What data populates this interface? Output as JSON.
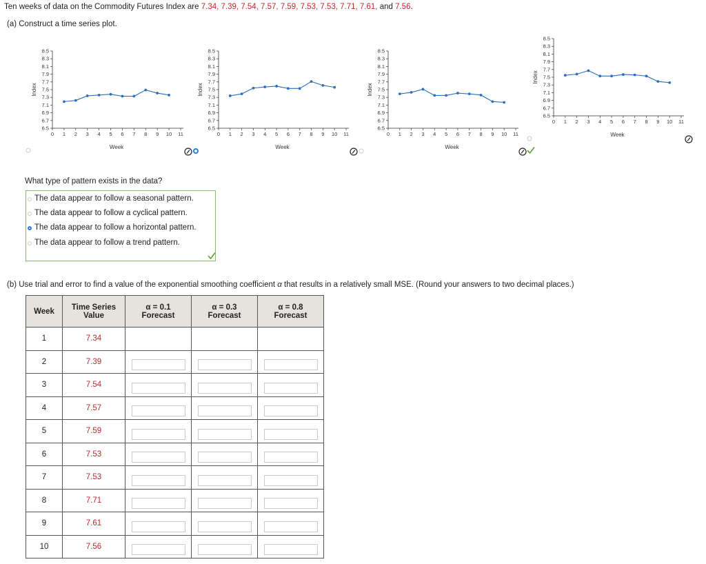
{
  "question": {
    "intro": "Ten weeks of data on the Commodity Futures Index are ",
    "values": "7.34, 7.39, 7.54, 7.57, 7.59, 7.53, 7.53, 7.71, 7.61,",
    "and_word": " and ",
    "last_value": "7.56",
    "period": "."
  },
  "part_a": {
    "prompt": "(a)   Construct a time series plot."
  },
  "plots": [
    {
      "ylabel": "Index",
      "xlabel": "Week",
      "yticks": [
        "8.5",
        "8.3",
        "8.1",
        "7.9",
        "7.7",
        "7.5",
        "7.3",
        "7.1",
        "6.9",
        "6.7",
        "6.5"
      ],
      "xticks": [
        "0",
        "1",
        "2",
        "3",
        "4",
        "5",
        "6",
        "7",
        "8",
        "9",
        "10",
        "11"
      ],
      "chart_data": {
        "type": "line",
        "x": [
          1,
          2,
          3,
          4,
          5,
          6,
          7,
          8,
          9,
          10
        ],
        "y": [
          7.19,
          7.22,
          7.34,
          7.36,
          7.38,
          7.33,
          7.33,
          7.49,
          7.41,
          7.36
        ],
        "ylim": [
          6.5,
          8.5
        ],
        "xlim": [
          0,
          11
        ]
      }
    },
    {
      "ylabel": "Index",
      "xlabel": "Week",
      "yticks": [
        "8.5",
        "8.3",
        "8.1",
        "7.9",
        "7.7",
        "7.5",
        "7.3",
        "7.1",
        "6.9",
        "6.7",
        "6.5"
      ],
      "xticks": [
        "0",
        "1",
        "2",
        "3",
        "4",
        "5",
        "6",
        "7",
        "8",
        "9",
        "10",
        "11"
      ],
      "chart_data": {
        "type": "line",
        "x": [
          1,
          2,
          3,
          4,
          5,
          6,
          7,
          8,
          9,
          10
        ],
        "y": [
          7.34,
          7.39,
          7.54,
          7.57,
          7.59,
          7.53,
          7.53,
          7.71,
          7.61,
          7.56
        ],
        "ylim": [
          6.5,
          8.5
        ],
        "xlim": [
          0,
          11
        ]
      }
    },
    {
      "ylabel": "Index",
      "xlabel": "Week",
      "yticks": [
        "8.5",
        "8.3",
        "8.1",
        "7.9",
        "7.7",
        "7.5",
        "7.3",
        "7.1",
        "6.9",
        "6.7",
        "6.5"
      ],
      "xticks": [
        "0",
        "1",
        "2",
        "3",
        "4",
        "5",
        "6",
        "7",
        "8",
        "9",
        "10",
        "11"
      ],
      "chart_data": {
        "type": "line",
        "x": [
          1,
          2,
          3,
          4,
          5,
          6,
          7,
          8,
          9,
          10
        ],
        "y": [
          7.39,
          7.43,
          7.51,
          7.35,
          7.35,
          7.41,
          7.39,
          7.36,
          7.19,
          7.17
        ],
        "ylim": [
          6.5,
          8.5
        ],
        "xlim": [
          0,
          11
        ]
      }
    },
    {
      "ylabel": "Index",
      "xlabel": "Week",
      "yticks": [
        "8.5",
        "8.3",
        "8.1",
        "7.9",
        "7.7",
        "7.5",
        "7.3",
        "7.1",
        "6.9",
        "6.7",
        "6.5"
      ],
      "xticks": [
        "0",
        "1",
        "2",
        "3",
        "4",
        "5",
        "6",
        "7",
        "8",
        "9",
        "10",
        "11"
      ],
      "chart_data": {
        "type": "line",
        "x": [
          1,
          2,
          3,
          4,
          5,
          6,
          7,
          8,
          9,
          10
        ],
        "y": [
          7.55,
          7.58,
          7.67,
          7.53,
          7.53,
          7.57,
          7.56,
          7.53,
          7.39,
          7.36
        ],
        "ylim": [
          6.5,
          8.5
        ],
        "xlim": [
          0,
          11
        ]
      }
    }
  ],
  "pattern": {
    "question": "What type of pattern exists in the data?",
    "choices": [
      "The data appear to follow a seasonal pattern.",
      "The data appear to follow a cyclical pattern.",
      "The data appear to follow a horizontal pattern.",
      "The data appear to follow a trend pattern."
    ],
    "selected_index": 2
  },
  "part_b": {
    "prompt_start": "(b)   Use trial and error to find a value of the exponential smoothing coefficient ",
    "alpha": "α",
    "prompt_end": " that results in a relatively small MSE. (Round your answers to two decimal places.)"
  },
  "table": {
    "headers": {
      "week": "Week",
      "ts_line1": "Time Series",
      "ts_line2": "Value",
      "a1_line1": "α = 0.1",
      "a2_line1": "α = 0.3",
      "a3_line1": "α = 0.8",
      "forecast": "Forecast"
    },
    "rows": [
      {
        "week": "1",
        "value": "7.34"
      },
      {
        "week": "2",
        "value": "7.39"
      },
      {
        "week": "3",
        "value": "7.54"
      },
      {
        "week": "4",
        "value": "7.57"
      },
      {
        "week": "5",
        "value": "7.59"
      },
      {
        "week": "6",
        "value": "7.53"
      },
      {
        "week": "7",
        "value": "7.53"
      },
      {
        "week": "8",
        "value": "7.71"
      },
      {
        "week": "9",
        "value": "7.61"
      },
      {
        "week": "10",
        "value": "7.56"
      }
    ]
  },
  "colors": {
    "series": "#2b6fbd",
    "accent_red": "#c0282d",
    "check_green": "#5aa02c",
    "box_border": "#8bb86e"
  }
}
